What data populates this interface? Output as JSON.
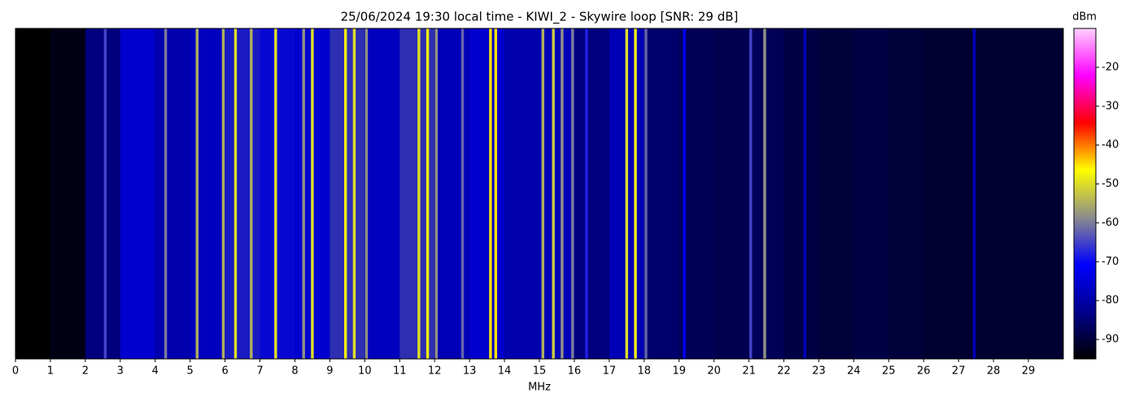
{
  "chart_data": {
    "type": "spectrogram",
    "title": "25/06/2024 19:30 local time - KIWI_2 - Skywire loop [SNR: 29 dB]",
    "xlabel": "MHz",
    "colorbar_label": "dBm",
    "xlim": [
      0,
      30
    ],
    "xticks": [
      0,
      1,
      2,
      3,
      4,
      5,
      6,
      7,
      8,
      9,
      10,
      11,
      12,
      13,
      14,
      15,
      16,
      17,
      18,
      19,
      20,
      21,
      22,
      23,
      24,
      25,
      26,
      27,
      28,
      29
    ],
    "clim": [
      -95,
      -10
    ],
    "cticks": [
      -20,
      -30,
      -40,
      -50,
      -60,
      -70,
      -80,
      -90
    ],
    "colormap": [
      "#000000",
      "#00008c",
      "#0000ff",
      "#8c8c8c",
      "#ffff00",
      "#ff0000",
      "#ff00ff",
      "#ffd0ff"
    ],
    "x": [
      0.5,
      1.5,
      2.5,
      3.5,
      4.5,
      5.5,
      6.5,
      7.5,
      8.5,
      9.5,
      10.5,
      11.5,
      12.5,
      13.5,
      14.5,
      15.5,
      16.5,
      17.5,
      18.5,
      19.5,
      20.5,
      21.5,
      22.5,
      23.5,
      24.5,
      25.5,
      26.5,
      27.5,
      28.5,
      29.5
    ],
    "values": [
      -95,
      -93,
      -82,
      -72,
      -76,
      -74,
      -68,
      -70,
      -72,
      -66,
      -74,
      -66,
      -75,
      -72,
      -76,
      -75,
      -82,
      -75,
      -84,
      -86,
      -87,
      -86,
      -88,
      -89,
      -88,
      -89,
      -90,
      -90,
      -90,
      -90
    ],
    "signals": {
      "x": [
        2.57,
        4.3,
        5.2,
        5.95,
        6.3,
        6.75,
        7.45,
        8.25,
        8.5,
        9.45,
        9.7,
        10.05,
        11.55,
        11.8,
        12.05,
        12.8,
        13.6,
        13.75,
        15.1,
        15.4,
        15.65,
        15.95,
        16.35,
        17.5,
        17.75,
        18.05,
        19.15,
        21.05,
        21.45,
        22.6,
        27.45
      ],
      "values": [
        -65,
        -60,
        -55,
        -55,
        -50,
        -55,
        -50,
        -58,
        -50,
        -48,
        -50,
        -58,
        -50,
        -48,
        -58,
        -62,
        -45,
        -45,
        -55,
        -52,
        -58,
        -60,
        -68,
        -50,
        -48,
        -62,
        -72,
        -65,
        -58,
        -78,
        -78
      ]
    }
  }
}
